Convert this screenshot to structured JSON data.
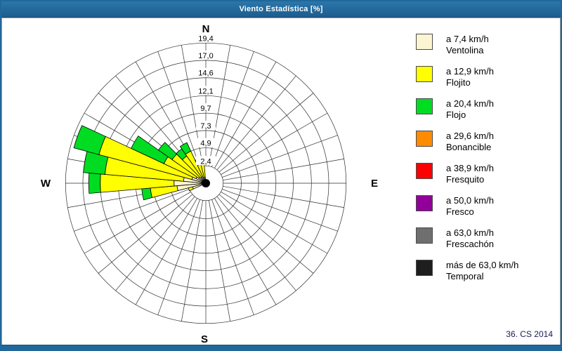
{
  "window": {
    "title": "Viento Estadística [%]",
    "accent_color": "#20689A",
    "footer_text": "36. CS 2014"
  },
  "chart_data": {
    "type": "windrose-stacked-polar-bar",
    "title": "Viento Estadística [%]",
    "units": "%",
    "grid": {
      "sectors": 36,
      "sector_step_deg": 10,
      "rings": 8,
      "grid_color": "#2e2e2e",
      "inner_hole_value": 2.4
    },
    "radial_ticks": [
      2.4,
      4.9,
      7.3,
      9.7,
      12.1,
      14.6,
      17.0,
      19.4
    ],
    "radial_tick_labels": [
      "2,4",
      "4,9",
      "7,3",
      "9,7",
      "12,1",
      "14,6",
      "17,0",
      "19,4"
    ],
    "radial_max": 19.43,
    "compass": {
      "north": "N",
      "east": "E",
      "south": "S",
      "west": "W"
    },
    "speed_bins": [
      {
        "speed_label": "a 7,4 km/h",
        "name": "Ventolina",
        "color": "#FCF5D2"
      },
      {
        "speed_label": "a 12,9 km/h",
        "name": "Flojito",
        "color": "#FFFF00"
      },
      {
        "speed_label": "a 20,4 km/h",
        "name": "Flojo",
        "color": "#00DC22"
      },
      {
        "speed_label": "a 29,6 km/h",
        "name": "Bonancible",
        "color": "#FF8C00"
      },
      {
        "speed_label": "a 38,9 km/h",
        "name": "Fresquito",
        "color": "#FF0000"
      },
      {
        "speed_label": "a 50,0 km/h",
        "name": "Fresco",
        "color": "#92009A"
      },
      {
        "speed_label": "a 63,0 km/h",
        "name": "Frescachón",
        "color": "#6F6F6F"
      },
      {
        "speed_label": "más de 63,0 km/h",
        "name": "Temporal",
        "color": "#1E1E1E"
      }
    ],
    "stack_bin_names": [
      "Ventolina",
      "Flojito",
      "Flojo"
    ],
    "petals": [
      {
        "dir_deg": 250,
        "cumulative_pct": [
          1.9,
          2.5,
          2.5
        ]
      },
      {
        "dir_deg": 260,
        "cumulative_pct": [
          4.0,
          7.7,
          8.9
        ]
      },
      {
        "dir_deg": 270,
        "cumulative_pct": [
          4.4,
          14.6,
          16.2
        ]
      },
      {
        "dir_deg": 280,
        "cumulative_pct": [
          3.1,
          14.0,
          17.0
        ]
      },
      {
        "dir_deg": 290,
        "cumulative_pct": [
          2.0,
          15.3,
          18.9
        ]
      },
      {
        "dir_deg": 300,
        "cumulative_pct": [
          1.5,
          6.4,
          11.4
        ]
      },
      {
        "dir_deg": 310,
        "cumulative_pct": [
          1.2,
          5.7,
          8.0
        ]
      },
      {
        "dir_deg": 320,
        "cumulative_pct": [
          1.0,
          4.6,
          5.8
        ]
      },
      {
        "dir_deg": 330,
        "cumulative_pct": [
          1.0,
          4.9,
          6.2
        ]
      },
      {
        "dir_deg": 340,
        "cumulative_pct": [
          0.8,
          2.7,
          3.5
        ]
      },
      {
        "dir_deg": 350,
        "cumulative_pct": [
          0.8,
          3.3,
          3.3
        ]
      }
    ],
    "legend_position": "right"
  },
  "footer": {
    "text": "36. CS 2014"
  }
}
